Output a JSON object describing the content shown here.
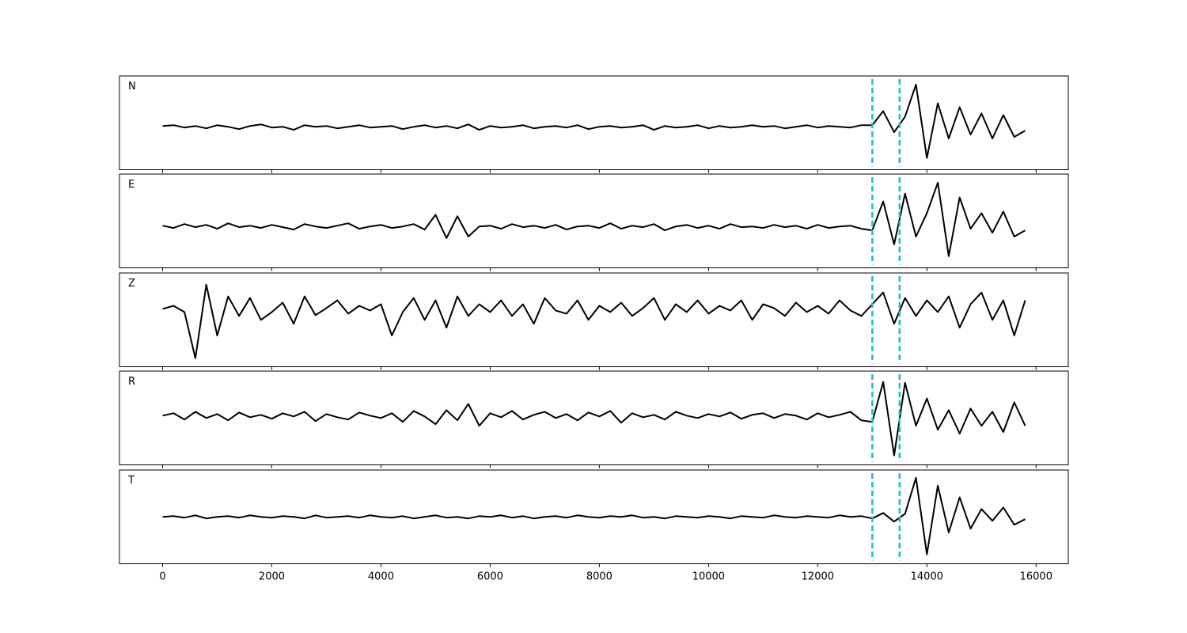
{
  "chart_data": [
    {
      "type": "line",
      "label": "N",
      "color": "#000000",
      "xlim": [
        -790,
        16590
      ],
      "ylim": [
        -60,
        60
      ],
      "vlines": [
        13000,
        13500
      ],
      "vline_color": "#17becf",
      "x": [
        0,
        200,
        400,
        600,
        800,
        1000,
        1200,
        1400,
        1600,
        1800,
        2000,
        2200,
        2400,
        2600,
        2800,
        3000,
        3200,
        3400,
        3600,
        3800,
        4000,
        4200,
        4400,
        4600,
        4800,
        5000,
        5200,
        5400,
        5600,
        5800,
        6000,
        6200,
        6400,
        6600,
        6800,
        7000,
        7200,
        7400,
        7600,
        7800,
        8000,
        8200,
        8400,
        8600,
        8800,
        9000,
        9200,
        9400,
        9600,
        9800,
        10000,
        10200,
        10400,
        10600,
        10800,
        11000,
        11200,
        11400,
        11600,
        11800,
        12000,
        12200,
        12400,
        12600,
        12800,
        13000,
        13200,
        13400,
        13600,
        13800,
        14000,
        14200,
        14400,
        14600,
        14800,
        15000,
        15200,
        15400,
        15600,
        15800
      ],
      "values": [
        -4,
        -3,
        -6,
        -4,
        -7,
        -3,
        -5,
        -8,
        -4,
        -2,
        -6,
        -5,
        -9,
        -3,
        -5,
        -4,
        -7,
        -5,
        -3,
        -6,
        -5,
        -4,
        -8,
        -5,
        -3,
        -6,
        -4,
        -7,
        -2,
        -9,
        -4,
        -6,
        -5,
        -3,
        -7,
        -5,
        -4,
        -6,
        -3,
        -8,
        -5,
        -4,
        -6,
        -5,
        -3,
        -9,
        -4,
        -6,
        -5,
        -3,
        -7,
        -4,
        -6,
        -5,
        -3,
        -5,
        -4,
        -7,
        -5,
        -3,
        -6,
        -4,
        -5,
        -6,
        -3,
        -3,
        15,
        -12,
        8,
        49,
        -45,
        25,
        -20,
        20,
        -15,
        12,
        -20,
        10,
        -18,
        -10
      ]
    },
    {
      "type": "line",
      "label": "E",
      "color": "#000000",
      "xlim": [
        -790,
        16590
      ],
      "ylim": [
        -60,
        60
      ],
      "vlines": [
        13000,
        13500
      ],
      "vline_color": "#17becf",
      "x": [
        0,
        200,
        400,
        600,
        800,
        1000,
        1200,
        1400,
        1600,
        1800,
        2000,
        2200,
        2400,
        2600,
        2800,
        3000,
        3200,
        3400,
        3600,
        3800,
        4000,
        4200,
        4400,
        4600,
        4800,
        5000,
        5200,
        5400,
        5600,
        5800,
        6000,
        6200,
        6400,
        6600,
        6800,
        7000,
        7200,
        7400,
        7600,
        7800,
        8000,
        8200,
        8400,
        8600,
        8800,
        9000,
        9200,
        9400,
        9600,
        9800,
        10000,
        10200,
        10400,
        10600,
        10800,
        11000,
        11200,
        11400,
        11600,
        11800,
        12000,
        12200,
        12400,
        12600,
        12800,
        13000,
        13200,
        13400,
        13600,
        13800,
        14000,
        14200,
        14400,
        14600,
        14800,
        15000,
        15200,
        15400,
        15600,
        15800
      ],
      "values": [
        -6,
        -9,
        -4,
        -8,
        -5,
        -10,
        -3,
        -8,
        -6,
        -9,
        -5,
        -8,
        -11,
        -4,
        -7,
        -9,
        -6,
        -3,
        -10,
        -7,
        -5,
        -9,
        -7,
        -4,
        -11,
        8,
        -22,
        6,
        -20,
        -7,
        -6,
        -10,
        -4,
        -8,
        -6,
        -9,
        -5,
        -11,
        -7,
        -6,
        -9,
        -3,
        -10,
        -6,
        -8,
        -4,
        -12,
        -7,
        -5,
        -9,
        -6,
        -10,
        -4,
        -8,
        -7,
        -9,
        -5,
        -8,
        -6,
        -10,
        -5,
        -9,
        -7,
        -6,
        -10,
        -12,
        25,
        -30,
        35,
        -20,
        10,
        49,
        -45,
        30,
        -10,
        10,
        -15,
        12,
        -20,
        -12
      ]
    },
    {
      "type": "line",
      "label": "Z",
      "color": "#000000",
      "xlim": [
        -790,
        16590
      ],
      "ylim": [
        -60,
        60
      ],
      "vlines": [
        13000,
        13500
      ],
      "vline_color": "#17becf",
      "x": [
        0,
        200,
        400,
        600,
        800,
        1000,
        1200,
        1400,
        1600,
        1800,
        2000,
        2200,
        2400,
        2600,
        2800,
        3000,
        3200,
        3400,
        3600,
        3800,
        4000,
        4200,
        4400,
        4600,
        4800,
        5000,
        5200,
        5400,
        5600,
        5800,
        6000,
        6200,
        6400,
        6600,
        6800,
        7000,
        7200,
        7400,
        7600,
        7800,
        8000,
        8200,
        8400,
        8600,
        8800,
        9000,
        9200,
        9400,
        9600,
        9800,
        10000,
        10200,
        10400,
        10600,
        10800,
        11000,
        11200,
        11400,
        11600,
        11800,
        12000,
        12200,
        12400,
        12600,
        12800,
        13000,
        13200,
        13400,
        13600,
        13800,
        14000,
        14200,
        14400,
        14600,
        14800,
        15000,
        15200,
        15400,
        15600,
        15800
      ],
      "values": [
        14,
        18,
        10,
        -49,
        45,
        -20,
        30,
        5,
        28,
        0,
        10,
        22,
        -5,
        30,
        6,
        15,
        25,
        8,
        18,
        12,
        20,
        -20,
        10,
        28,
        0,
        25,
        -10,
        30,
        5,
        20,
        10,
        25,
        5,
        20,
        -5,
        28,
        12,
        8,
        25,
        0,
        18,
        10,
        22,
        5,
        15,
        28,
        0,
        20,
        10,
        25,
        8,
        18,
        12,
        25,
        0,
        20,
        15,
        5,
        22,
        10,
        18,
        8,
        25,
        12,
        5,
        20,
        35,
        -5,
        28,
        5,
        25,
        10,
        30,
        -10,
        20,
        35,
        0,
        25,
        -20,
        25
      ]
    },
    {
      "type": "line",
      "label": "R",
      "color": "#000000",
      "xlim": [
        -790,
        16590
      ],
      "ylim": [
        -60,
        60
      ],
      "vlines": [
        13000,
        13500
      ],
      "vline_color": "#17becf",
      "x": [
        0,
        200,
        400,
        600,
        800,
        1000,
        1200,
        1400,
        1600,
        1800,
        2000,
        2200,
        2400,
        2600,
        2800,
        3000,
        3200,
        3400,
        3600,
        3800,
        4000,
        4200,
        4400,
        4600,
        4800,
        5000,
        5200,
        5400,
        5600,
        5800,
        6000,
        6200,
        6400,
        6600,
        6800,
        7000,
        7200,
        7400,
        7600,
        7800,
        8000,
        8200,
        8400,
        8600,
        8800,
        9000,
        9200,
        9400,
        9600,
        9800,
        10000,
        10200,
        10400,
        10600,
        10800,
        11000,
        11200,
        11400,
        11600,
        11800,
        12000,
        12200,
        12400,
        12600,
        12800,
        13000,
        13200,
        13400,
        13600,
        13800,
        14000,
        14200,
        14400,
        14600,
        14800,
        15000,
        15200,
        15400,
        15600,
        15800
      ],
      "values": [
        3,
        6,
        -2,
        8,
        0,
        5,
        -3,
        7,
        1,
        4,
        -1,
        6,
        2,
        8,
        -4,
        5,
        1,
        -2,
        7,
        3,
        0,
        6,
        -5,
        9,
        2,
        -8,
        10,
        -3,
        18,
        -10,
        6,
        1,
        9,
        -2,
        4,
        8,
        0,
        5,
        -3,
        7,
        2,
        9,
        -6,
        6,
        1,
        4,
        -2,
        8,
        3,
        0,
        5,
        2,
        7,
        -1,
        4,
        6,
        0,
        5,
        3,
        -2,
        6,
        1,
        4,
        8,
        -3,
        -5,
        46,
        -48,
        45,
        -10,
        25,
        -15,
        10,
        -20,
        12,
        -10,
        8,
        -18,
        20,
        -10
      ]
    },
    {
      "type": "line",
      "label": "T",
      "color": "#000000",
      "xlim": [
        -790,
        16590
      ],
      "ylim": [
        -60,
        60
      ],
      "vlines": [
        13000,
        13500
      ],
      "vline_color": "#17becf",
      "x": [
        0,
        200,
        400,
        600,
        800,
        1000,
        1200,
        1400,
        1600,
        1800,
        2000,
        2200,
        2400,
        2600,
        2800,
        3000,
        3200,
        3400,
        3600,
        3800,
        4000,
        4200,
        4400,
        4600,
        4800,
        5000,
        5200,
        5400,
        5600,
        5800,
        6000,
        6200,
        6400,
        6600,
        6800,
        7000,
        7200,
        7400,
        7600,
        7800,
        8000,
        8200,
        8400,
        8600,
        8800,
        9000,
        9200,
        9400,
        9600,
        9800,
        10000,
        10200,
        10400,
        10600,
        10800,
        11000,
        11200,
        11400,
        11600,
        11800,
        12000,
        12200,
        12400,
        12600,
        12800,
        13000,
        13200,
        13400,
        13600,
        13800,
        14000,
        14200,
        14400,
        14600,
        14800,
        15000,
        15200,
        15400,
        15600,
        15800
      ],
      "values": [
        0,
        1,
        -1,
        2,
        -2,
        0,
        1,
        -1,
        2,
        0,
        -1,
        1,
        0,
        -2,
        2,
        -1,
        0,
        1,
        -1,
        2,
        0,
        -1,
        1,
        -2,
        0,
        2,
        -1,
        0,
        -2,
        1,
        0,
        2,
        -1,
        1,
        -2,
        0,
        1,
        -1,
        2,
        0,
        -1,
        1,
        0,
        2,
        -1,
        0,
        -2,
        1,
        0,
        -1,
        1,
        0,
        -2,
        1,
        0,
        -1,
        2,
        0,
        -1,
        1,
        0,
        -1,
        2,
        0,
        1,
        -2,
        5,
        -6,
        4,
        50,
        -48,
        40,
        -20,
        25,
        -15,
        10,
        -5,
        12,
        -10,
        -3
      ],
      "xticks": [
        0,
        2000,
        4000,
        6000,
        8000,
        10000,
        12000,
        14000,
        16000
      ]
    }
  ]
}
